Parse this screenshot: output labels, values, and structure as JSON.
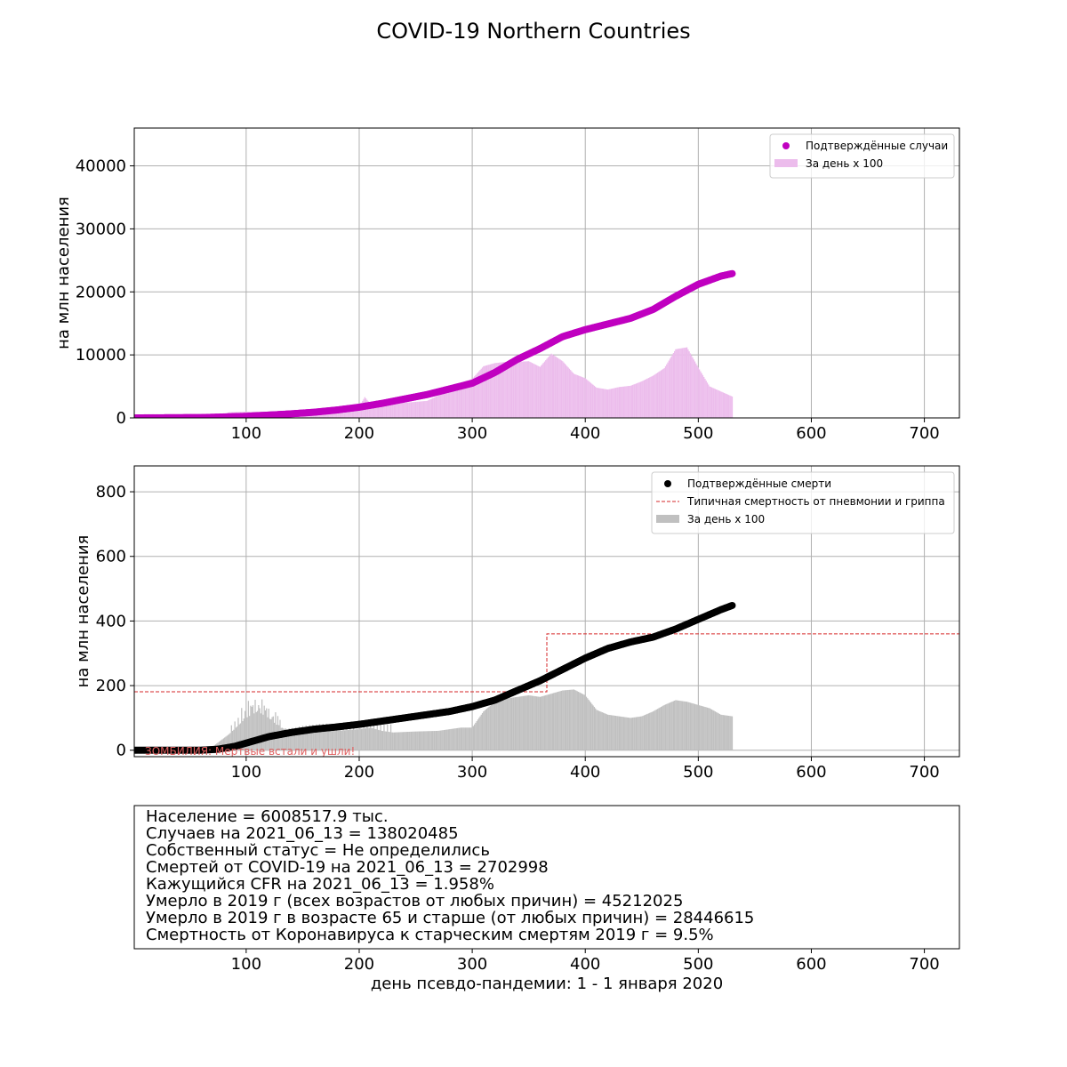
{
  "title": "COVID-19 Northern Countries",
  "xlabel": "день псевдо-пандемии: 1 - 1 января 2020",
  "colors": {
    "cases": "#c000c0",
    "cases_bar": "#ecbcec",
    "deaths": "#000000",
    "deaths_bar": "#c0c0c0",
    "flu": "#d62728",
    "grid": "#b0b0b0",
    "note": "#e06060"
  },
  "chart_data": [
    {
      "type": "scatter",
      "title": "",
      "ylabel": "на млн населения",
      "xlim": [
        1,
        731
      ],
      "ylim": [
        0,
        46000
      ],
      "xticks": [
        100,
        200,
        300,
        400,
        500,
        600,
        700
      ],
      "yticks": [
        0,
        10000,
        20000,
        30000,
        40000
      ],
      "legend": {
        "position": "top-right",
        "entries": [
          "Подтверждённые случаи",
          "За день x 100"
        ]
      },
      "series": [
        {
          "name": "Подтверждённые случаи",
          "kind": "cumulative",
          "x": [
            1,
            60,
            80,
            100,
            120,
            140,
            160,
            180,
            200,
            220,
            240,
            260,
            280,
            300,
            320,
            340,
            360,
            380,
            400,
            420,
            440,
            460,
            480,
            500,
            520,
            530
          ],
          "y": [
            0,
            60,
            150,
            250,
            450,
            650,
            900,
            1250,
            1700,
            2300,
            3000,
            3700,
            4600,
            5500,
            7200,
            9300,
            11000,
            12900,
            14000,
            14900,
            15800,
            17200,
            19300,
            21200,
            22500,
            22900
          ]
        },
        {
          "name": "За день x 100",
          "kind": "daily",
          "x": [
            1,
            40,
            70,
            85,
            100,
            120,
            140,
            160,
            180,
            200,
            205,
            210,
            220,
            240,
            260,
            280,
            290,
            300,
            310,
            320,
            330,
            340,
            350,
            360,
            370,
            380,
            390,
            400,
            410,
            420,
            430,
            440,
            450,
            460,
            470,
            480,
            490,
            500,
            510,
            520,
            530
          ],
          "y": [
            0,
            50,
            100,
            900,
            1000,
            1000,
            1100,
            1100,
            1300,
            1800,
            3300,
            2200,
            2300,
            2400,
            2700,
            4400,
            5600,
            6200,
            8200,
            8700,
            8900,
            8900,
            9000,
            8100,
            10200,
            9000,
            7000,
            6300,
            4800,
            4500,
            4900,
            5100,
            5800,
            6700,
            7900,
            10900,
            11200,
            8000,
            5000,
            4200,
            3400
          ]
        }
      ]
    },
    {
      "type": "scatter",
      "title": "",
      "ylabel": "на млн населения",
      "xlim": [
        1,
        731
      ],
      "ylim": [
        -20,
        880
      ],
      "xticks": [
        100,
        200,
        300,
        400,
        500,
        600,
        700
      ],
      "yticks": [
        0,
        200,
        400,
        600,
        800
      ],
      "legend": {
        "position": "top-right",
        "entries": [
          "Подтверждённые смерти",
          "Типичная смертность от пневмонии и гриппа",
          "За день x 100"
        ]
      },
      "annotation": "ЗОМБИЛИЯ: Мертвые встали и ушли!",
      "series": [
        {
          "name": "Подтверждённые смерти",
          "kind": "cumulative",
          "x": [
            1,
            60,
            75,
            90,
            100,
            110,
            120,
            140,
            160,
            180,
            200,
            220,
            240,
            260,
            280,
            300,
            320,
            340,
            360,
            380,
            400,
            420,
            440,
            460,
            480,
            500,
            520,
            530
          ],
          "y": [
            0,
            0,
            3,
            12,
            22,
            32,
            42,
            55,
            65,
            72,
            80,
            90,
            100,
            110,
            120,
            135,
            155,
            185,
            215,
            250,
            285,
            315,
            335,
            350,
            375,
            405,
            435,
            448
          ]
        },
        {
          "name": "Типичная смертность от пневмонии и гриппа",
          "kind": "step",
          "x": [
            1,
            366,
            366,
            731
          ],
          "y": [
            181,
            181,
            360,
            360
          ]
        },
        {
          "name": "За день x 100",
          "kind": "daily",
          "x": [
            70,
            85,
            100,
            110,
            120,
            130,
            140,
            160,
            180,
            200,
            210,
            220,
            230,
            250,
            270,
            290,
            300,
            310,
            320,
            330,
            340,
            350,
            360,
            370,
            380,
            390,
            400,
            410,
            420,
            430,
            440,
            450,
            460,
            470,
            480,
            490,
            500,
            510,
            520,
            530
          ],
          "y": [
            10,
            50,
            100,
            120,
            100,
            70,
            60,
            55,
            60,
            65,
            70,
            60,
            55,
            58,
            60,
            70,
            70,
            120,
            150,
            160,
            165,
            170,
            165,
            175,
            185,
            188,
            170,
            125,
            110,
            105,
            100,
            105,
            120,
            140,
            155,
            150,
            140,
            130,
            110,
            105
          ]
        }
      ]
    }
  ],
  "info": {
    "lines": [
      "Население = 6008517.9 тыс.",
      "Случаев на 2021_06_13 = 138020485",
      "Собственный статус = Не определились",
      "Смертей от COVID-19 на 2021_06_13 = 2702998",
      "Кажущийся CFR на 2021_06_13 = 1.958%",
      "Умерло в 2019 г (всех возрастов от любых причин) = 45212025",
      "Умерло в 2019 г в возрасте 65 и старше (от любых причин) = 28446615",
      "Смертность от Коронавируса к старческим смертям 2019 г = 9.5%"
    ],
    "xticks": [
      100,
      200,
      300,
      400,
      500,
      600,
      700
    ]
  }
}
